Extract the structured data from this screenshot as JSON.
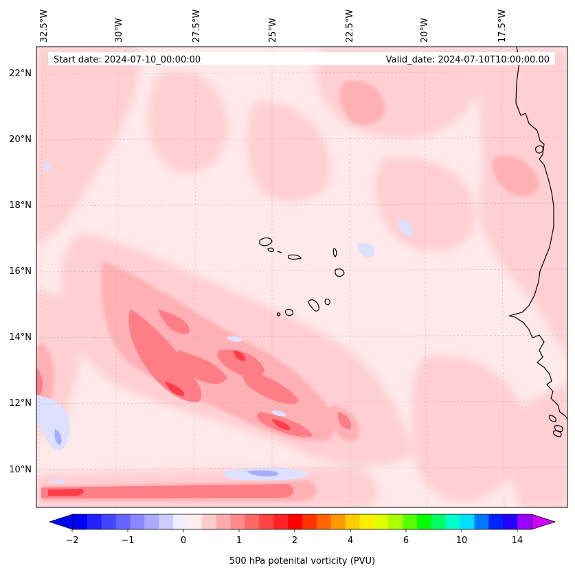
{
  "map": {
    "lon_labels": [
      "32.5°W",
      "30°W",
      "27.5°W",
      "25°W",
      "22.5°W",
      "20°W",
      "17.5°W"
    ],
    "lat_labels": [
      "22°N",
      "20°N",
      "18°N",
      "16°N",
      "14°N",
      "12°N",
      "10°N"
    ],
    "start_label": "Start date: 2024-07-10_00:00:00",
    "valid_label": "Valid_date: 2024-07-10T10:00:00.00",
    "field": "500 hPa potential vorticity",
    "colorbar": {
      "title": "500 hPa potenital vorticity (PVU)",
      "tick_labels": [
        "−2",
        "−1",
        "0",
        "1",
        "2",
        "4",
        "6",
        "10",
        "14"
      ],
      "colors": [
        "#0000ff",
        "#2222ff",
        "#4444ff",
        "#6666ff",
        "#8888ff",
        "#aaaaff",
        "#ccccff",
        "#eeeeff",
        "#ffeeee",
        "#ffcccc",
        "#ffaaaa",
        "#ff8888",
        "#ff6666",
        "#ff4444",
        "#ff2222",
        "#ff0000",
        "#ff3300",
        "#ff6600",
        "#ff9900",
        "#ffcc00",
        "#ffee00",
        "#ddff00",
        "#aaff00",
        "#55ff00",
        "#00ff00",
        "#00ff66",
        "#00ffcc",
        "#00ddff",
        "#0077ff",
        "#0022ff",
        "#2200ff",
        "#9900ff"
      ],
      "extend_low": "#0000ff",
      "extend_high": "#cc00ff"
    }
  }
}
